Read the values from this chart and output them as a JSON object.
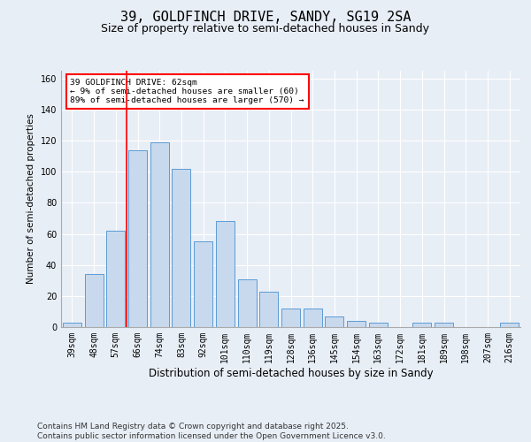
{
  "title": "39, GOLDFINCH DRIVE, SANDY, SG19 2SA",
  "subtitle": "Size of property relative to semi-detached houses in Sandy",
  "xlabel": "Distribution of semi-detached houses by size in Sandy",
  "ylabel": "Number of semi-detached properties",
  "categories": [
    "39sqm",
    "48sqm",
    "57sqm",
    "66sqm",
    "74sqm",
    "83sqm",
    "92sqm",
    "101sqm",
    "110sqm",
    "119sqm",
    "128sqm",
    "136sqm",
    "145sqm",
    "154sqm",
    "163sqm",
    "172sqm",
    "181sqm",
    "189sqm",
    "198sqm",
    "207sqm",
    "216sqm"
  ],
  "values": [
    3,
    34,
    62,
    114,
    119,
    102,
    55,
    68,
    31,
    23,
    12,
    12,
    7,
    4,
    3,
    0,
    3,
    3,
    0,
    0,
    3
  ],
  "bar_color": "#c9d9ed",
  "bar_edge_color": "#5b9bd5",
  "vline_x": 2.5,
  "vline_color": "red",
  "annotation_title": "39 GOLDFINCH DRIVE: 62sqm",
  "annotation_line1": "← 9% of semi-detached houses are smaller (60)",
  "annotation_line2": "89% of semi-detached houses are larger (570) →",
  "annotation_box_color": "red",
  "ylim": [
    0,
    165
  ],
  "yticks": [
    0,
    20,
    40,
    60,
    80,
    100,
    120,
    140,
    160
  ],
  "background_color": "#e8eef6",
  "plot_background": "#e8eef6",
  "footer": "Contains HM Land Registry data © Crown copyright and database right 2025.\nContains public sector information licensed under the Open Government Licence v3.0.",
  "title_fontsize": 11,
  "subtitle_fontsize": 9,
  "footer_fontsize": 6.5,
  "tick_fontsize": 7,
  "ylabel_fontsize": 7.5,
  "xlabel_fontsize": 8.5
}
